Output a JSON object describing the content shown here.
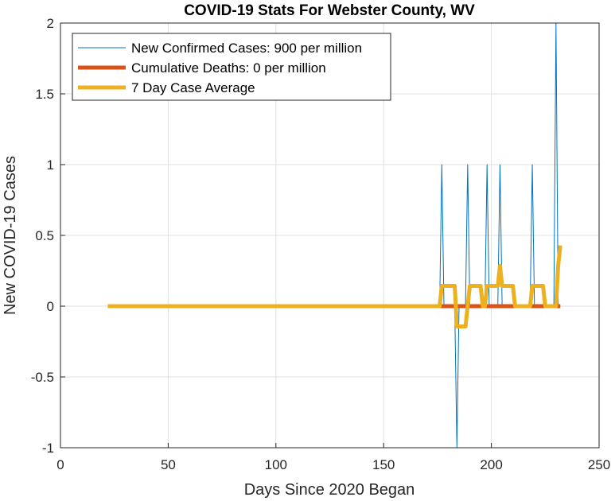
{
  "chart_data": {
    "type": "line",
    "title": "COVID-19 Stats For Webster County, WV",
    "xlabel": "Days Since 2020 Began",
    "ylabel": "New COVID-19 Cases",
    "xlim": [
      0,
      250
    ],
    "ylim": [
      -1,
      2
    ],
    "xticks": [
      0,
      50,
      100,
      150,
      200,
      250
    ],
    "yticks": [
      -1,
      -0.5,
      0,
      0.5,
      1,
      1.5,
      2
    ],
    "xtick_labels": [
      "0",
      "50",
      "100",
      "150",
      "200",
      "250"
    ],
    "ytick_labels": [
      "-1",
      "-0.5",
      "0",
      "0.5",
      "1",
      "1.5",
      "2"
    ],
    "grid": true,
    "legend_position": "top-left",
    "series": [
      {
        "name": "New Confirmed Cases: 900 per million",
        "color": "#0072BD",
        "style": "thin",
        "x": [
          22,
          176,
          177,
          178,
          183,
          184,
          185,
          188,
          189,
          190,
          197,
          198,
          199,
          203,
          204,
          205,
          218,
          219,
          220,
          229,
          230,
          231,
          232
        ],
        "y": [
          0,
          0,
          1,
          0,
          0,
          -1,
          0,
          0,
          1,
          0,
          0,
          1,
          0,
          0,
          1,
          0,
          0,
          1,
          0,
          0,
          2,
          0,
          0
        ]
      },
      {
        "name": "Cumulative Deaths: 0 per million",
        "color": "#D95319",
        "style": "thick",
        "x": [
          22,
          232
        ],
        "y": [
          0,
          0
        ]
      },
      {
        "name": "7 Day Case Average",
        "color": "#EDB120",
        "style": "thick",
        "x": [
          22,
          176,
          177,
          183,
          184,
          185,
          188,
          189,
          190,
          191,
          195,
          196,
          197,
          198,
          203,
          204,
          205,
          210,
          211,
          212,
          217,
          218,
          219,
          224,
          225,
          226,
          229,
          230,
          231,
          232
        ],
        "y": [
          0,
          0,
          0.143,
          0.143,
          -0.143,
          -0.143,
          -0.143,
          0,
          0.143,
          0.143,
          0.143,
          0,
          0,
          0.143,
          0.143,
          0.286,
          0.143,
          0.143,
          0,
          0,
          0,
          0,
          0.143,
          0.143,
          0,
          0,
          0,
          0,
          0.286,
          0.429
        ]
      }
    ]
  }
}
